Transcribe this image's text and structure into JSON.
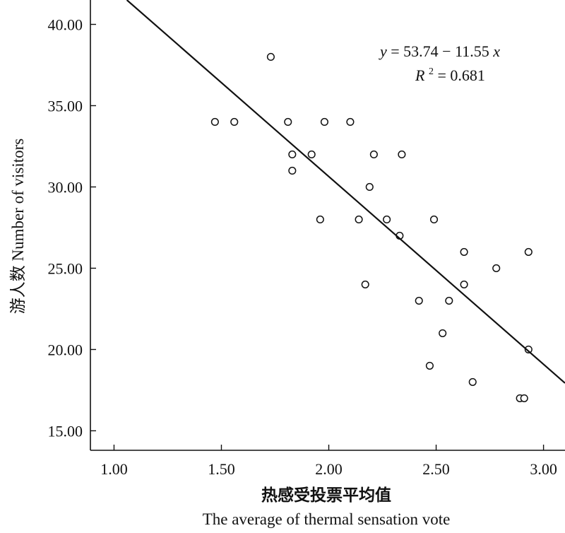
{
  "chart_data": {
    "type": "scatter",
    "title": "",
    "xlabel_cn": "热感受投票平均值",
    "xlabel_en": "The average of thermal sensation vote",
    "ylabel": "游人数 Number of visitors",
    "xlim": [
      0.89,
      3.1
    ],
    "ylim": [
      13.8,
      41.5
    ],
    "xticks": [
      "1.00",
      "1.50",
      "2.00",
      "2.50",
      "3.00"
    ],
    "yticks": [
      "15.00",
      "20.00",
      "25.00",
      "30.00",
      "35.00",
      "40.00"
    ],
    "grid": false,
    "legend": "none",
    "points": [
      {
        "x": 1.47,
        "y": 34
      },
      {
        "x": 1.56,
        "y": 34
      },
      {
        "x": 1.73,
        "y": 38
      },
      {
        "x": 1.81,
        "y": 34
      },
      {
        "x": 1.83,
        "y": 32
      },
      {
        "x": 1.83,
        "y": 31
      },
      {
        "x": 1.92,
        "y": 32
      },
      {
        "x": 1.96,
        "y": 28
      },
      {
        "x": 1.98,
        "y": 34
      },
      {
        "x": 2.1,
        "y": 34
      },
      {
        "x": 2.14,
        "y": 28
      },
      {
        "x": 2.17,
        "y": 24
      },
      {
        "x": 2.19,
        "y": 30
      },
      {
        "x": 2.21,
        "y": 32
      },
      {
        "x": 2.27,
        "y": 28
      },
      {
        "x": 2.33,
        "y": 27
      },
      {
        "x": 2.34,
        "y": 32
      },
      {
        "x": 2.42,
        "y": 23
      },
      {
        "x": 2.47,
        "y": 19
      },
      {
        "x": 2.49,
        "y": 28
      },
      {
        "x": 2.53,
        "y": 21
      },
      {
        "x": 2.56,
        "y": 23
      },
      {
        "x": 2.63,
        "y": 26
      },
      {
        "x": 2.63,
        "y": 24
      },
      {
        "x": 2.67,
        "y": 18
      },
      {
        "x": 2.78,
        "y": 25
      },
      {
        "x": 2.89,
        "y": 17
      },
      {
        "x": 2.91,
        "y": 17
      },
      {
        "x": 2.93,
        "y": 26
      },
      {
        "x": 2.93,
        "y": 20
      }
    ],
    "fit": {
      "intercept": 53.74,
      "slope": -11.55,
      "r2": 0.681
    },
    "annotation": {
      "eq_y": "y",
      "eq_rest": " = 53.74  − 11.55",
      "eq_x": "x",
      "r2_r": "R",
      "r2_sup": "2",
      "r2_rest": " = 0.681"
    }
  }
}
